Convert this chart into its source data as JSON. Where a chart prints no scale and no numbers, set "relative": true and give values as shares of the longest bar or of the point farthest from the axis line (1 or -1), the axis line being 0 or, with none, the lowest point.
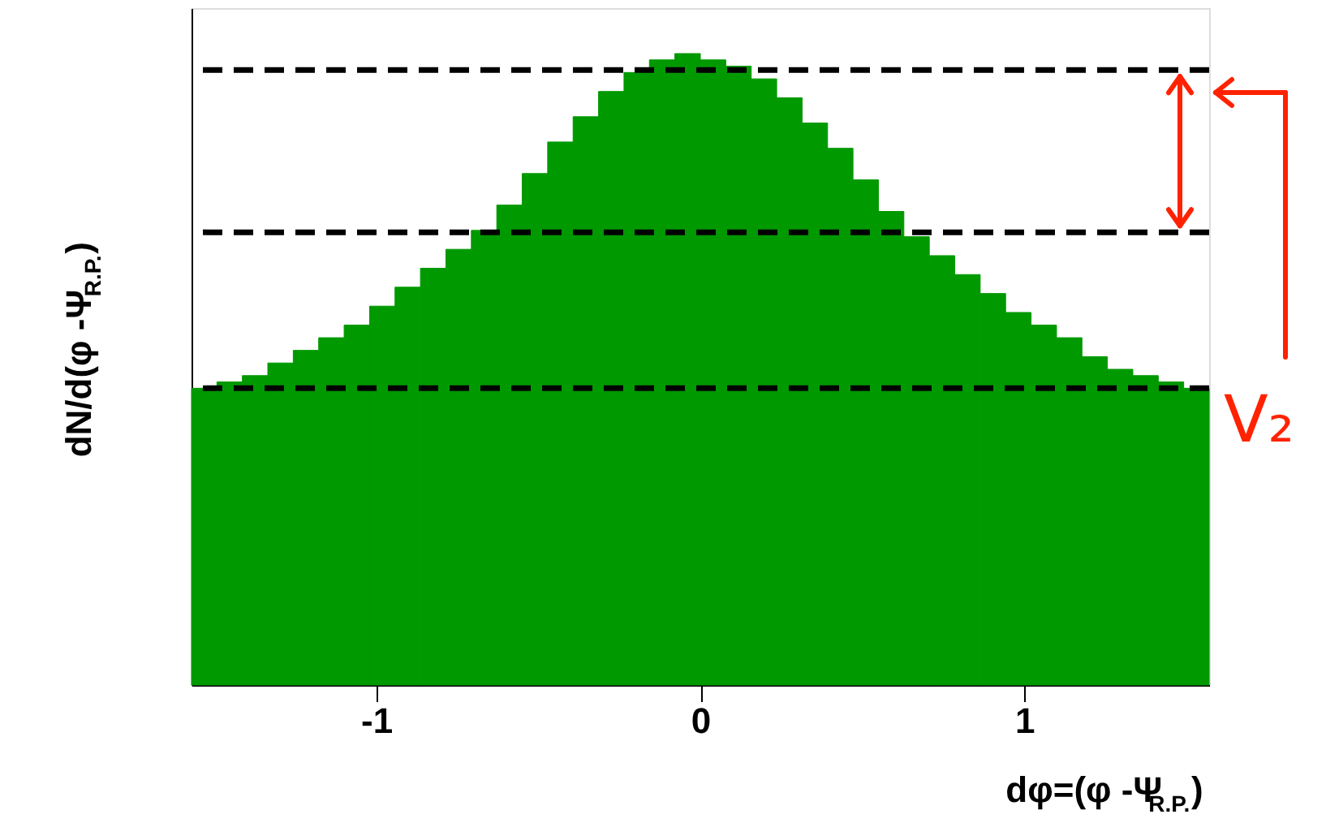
{
  "chart_data": {
    "type": "bar",
    "relative": true,
    "xlabel": "dφ=(φ -Ψ$_{R.P.}$)",
    "ylabel": "dN/d(φ -Ψ$_{R.P.}$)",
    "x": [
      -1.5308,
      -1.4523,
      -1.3738,
      -1.2953,
      -1.2168,
      -1.1383,
      -1.0598,
      -0.9813,
      -0.9028,
      -0.8243,
      -0.7458,
      -0.6673,
      -0.5888,
      -0.5103,
      -0.4318,
      -0.3533,
      -0.2748,
      -0.1963,
      -0.1178,
      -0.0393,
      0.0393,
      0.1178,
      0.1963,
      0.2748,
      0.3533,
      0.4318,
      0.5103,
      0.5888,
      0.6673,
      0.7458,
      0.8243,
      0.9028,
      0.9813,
      1.0598,
      1.1383,
      1.2168,
      1.2953,
      1.3738,
      1.4523,
      1.5308
    ],
    "values": [
      0.47,
      0.48,
      0.49,
      0.51,
      0.53,
      0.55,
      0.57,
      0.6,
      0.63,
      0.66,
      0.69,
      0.72,
      0.76,
      0.81,
      0.86,
      0.9,
      0.94,
      0.97,
      0.99,
      1.0,
      0.99,
      0.98,
      0.96,
      0.93,
      0.89,
      0.85,
      0.8,
      0.75,
      0.71,
      0.68,
      0.65,
      0.62,
      0.59,
      0.57,
      0.55,
      0.52,
      0.5,
      0.49,
      0.48,
      0.47
    ],
    "color": "#009900",
    "xlim": [
      -1.57,
      1.57
    ],
    "xticks": [
      -1,
      0,
      1
    ],
    "ref_lines": [
      {
        "axis": "y",
        "value": 0.974,
        "color": "#000000",
        "line_style": "dashed"
      },
      {
        "axis": "y",
        "value": 0.717,
        "color": "#000000",
        "line_style": "dashed"
      },
      {
        "axis": "y",
        "value": 0.47,
        "color": "#000000",
        "line_style": "dashed"
      }
    ],
    "annotations": [
      "V₂"
    ],
    "grid": false
  }
}
